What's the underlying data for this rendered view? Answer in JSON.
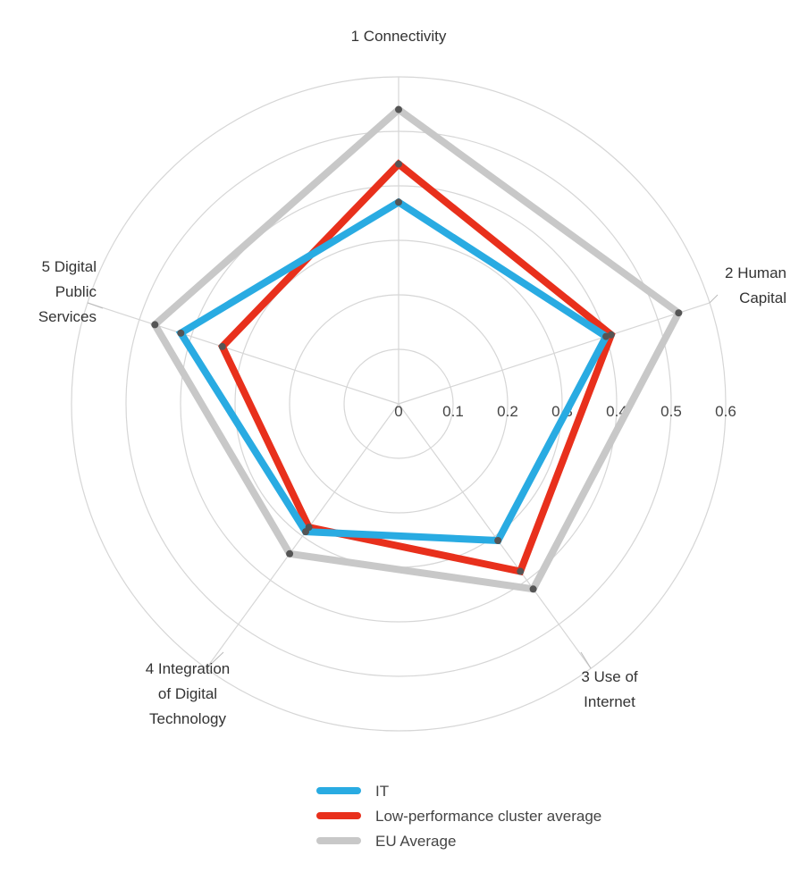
{
  "chart_data": {
    "type": "radar",
    "categories": [
      "1 Connectivity",
      "2 Human Capital",
      "3 Use of Internet",
      "4 Integration of Digital Technology",
      "5 Digital Public Services"
    ],
    "radial_ticks": [
      "0",
      "0.1",
      "0.2",
      "0.3",
      "0.4",
      "0.5",
      "0.6"
    ],
    "rlim": [
      0,
      0.6
    ],
    "grid": true,
    "legend_position": "bottom",
    "series": [
      {
        "name": "EU Average",
        "color": "#c8c8c8",
        "values": [
          0.54,
          0.54,
          0.42,
          0.34,
          0.47
        ]
      },
      {
        "name": "Low-performance cluster average",
        "color": "#e8301c",
        "values": [
          0.44,
          0.41,
          0.38,
          0.28,
          0.34
        ]
      },
      {
        "name": "IT",
        "color": "#29abe2",
        "values": [
          0.37,
          0.4,
          0.31,
          0.29,
          0.42
        ]
      }
    ],
    "legend_order": [
      "IT",
      "Low-performance cluster average",
      "EU Average"
    ]
  }
}
